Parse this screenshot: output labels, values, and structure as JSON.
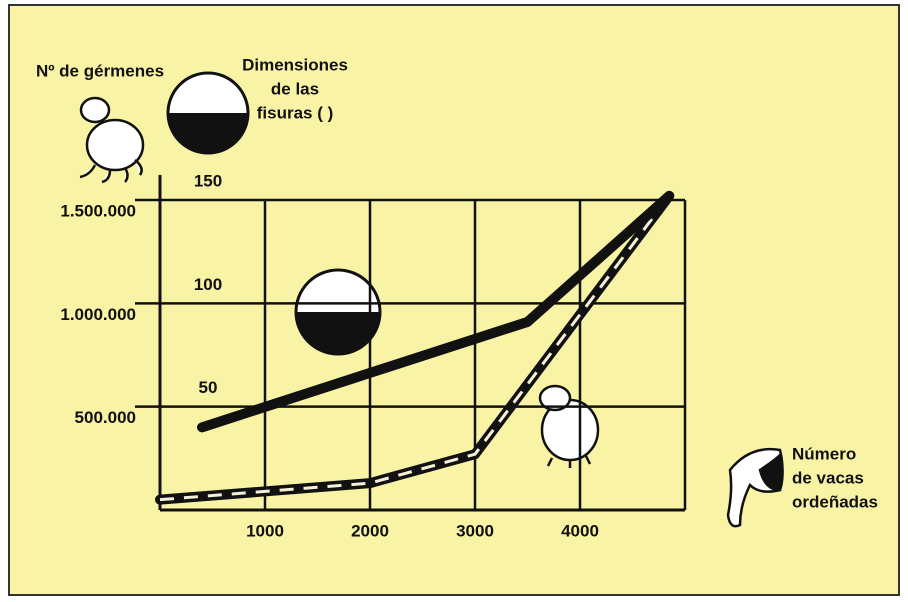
{
  "chart_data": {
    "type": "line",
    "ylabel": "Nº de gérmenes",
    "y2label": [
      "Dimensiones",
      "de las",
      "fisuras (  )"
    ],
    "xlabel": [
      "Número",
      "de vacas",
      "ordeñadas"
    ],
    "xlim": [
      0,
      5000
    ],
    "xticks": [
      1000,
      2000,
      3000,
      4000
    ],
    "ylim": [
      0,
      1500000
    ],
    "yticks": [
      {
        "value": 500000,
        "label": "500.000"
      },
      {
        "value": 1000000,
        "label": "1.000.000"
      },
      {
        "value": 1500000,
        "label": "1.500.000"
      }
    ],
    "y2lim": [
      0,
      150
    ],
    "y2ticks": [
      50,
      100,
      150
    ],
    "grid": true,
    "series": [
      {
        "color": "#111111",
        "style": "dashed",
        "x": [
          0,
          2000,
          3000,
          4850
        ],
        "values": [
          50000,
          130000,
          270000,
          1520000
        ]
      },
      {
        "color": "#111111",
        "style": "solid",
        "axis": "y2",
        "x": [
          400,
          3500,
          4850
        ],
        "values": [
          40,
          91,
          152
        ]
      }
    ]
  }
}
